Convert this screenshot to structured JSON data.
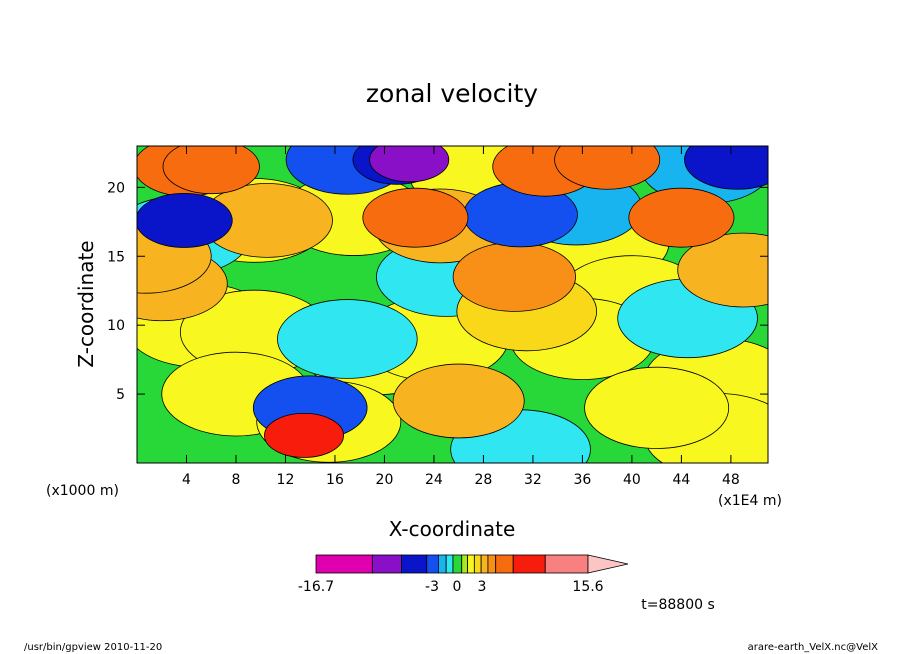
{
  "chart_data": {
    "type": "heatmap",
    "title": "zonal velocity",
    "xlabel": "X-coordinate",
    "ylabel": "Z-coordinate",
    "x_unit_note": "(x1E4 m)",
    "y_unit_note": "(x1000 m)",
    "xlim": [
      0,
      51
    ],
    "ylim": [
      0,
      23
    ],
    "x_ticks": [
      4,
      8,
      12,
      16,
      20,
      24,
      28,
      32,
      36,
      40,
      44,
      48
    ],
    "y_ticks": [
      5,
      10,
      15,
      20
    ],
    "x_tick_labels": [
      "4",
      "8",
      "12",
      "16",
      "20",
      "24",
      "28",
      "32",
      "36",
      "40",
      "44",
      "48"
    ],
    "y_tick_labels": [
      "5",
      "10",
      "15",
      "20"
    ],
    "time_label": "t=88800 s",
    "colorbar": {
      "min_label": "-16.7",
      "max_label": "15.6",
      "mid_labels": [
        "-3",
        "0",
        "3"
      ],
      "levels": [
        -16.7,
        -12,
        -8,
        -5,
        -3,
        -2,
        -1,
        0,
        1,
        2,
        3,
        4,
        6,
        9,
        12,
        15.6
      ],
      "colors": [
        "#e000b0",
        "#8a10c8",
        "#0a14c8",
        "#1450f0",
        "#18b4f0",
        "#30e6f0",
        "#28d838",
        "#a8e820",
        "#f8f820",
        "#f8d818",
        "#f8b420",
        "#f89018",
        "#f86c10",
        "#f81c0c",
        "#f88080"
      ],
      "extend_color": "#fcc4c4"
    },
    "field_features": [
      {
        "x": 4,
        "z": 21.5,
        "value": 6
      },
      {
        "x": 6,
        "z": 21.5,
        "value": 7
      },
      {
        "x": 3.8,
        "z": 17.6,
        "value": -7
      },
      {
        "x": 3.5,
        "z": 16.5,
        "value": -2
      },
      {
        "x": 10.5,
        "z": 17.6,
        "value": 3
      },
      {
        "x": 9.5,
        "z": 17.6,
        "value": 1
      },
      {
        "x": 2,
        "z": 13,
        "value": 3
      },
      {
        "x": 0.7,
        "z": 15,
        "value": 3
      },
      {
        "x": 5,
        "z": 10,
        "value": 1
      },
      {
        "x": 9.5,
        "z": 9.5,
        "value": 1
      },
      {
        "x": 13.5,
        "z": 2,
        "value": 9
      },
      {
        "x": 14,
        "z": 4,
        "value": -5
      },
      {
        "x": 15.5,
        "z": 3,
        "value": 1.5
      },
      {
        "x": 21,
        "z": 22,
        "value": -8
      },
      {
        "x": 22,
        "z": 22,
        "value": -12
      },
      {
        "x": 17,
        "z": 22,
        "value": -4
      },
      {
        "x": 17.5,
        "z": 18,
        "value": 1.5
      },
      {
        "x": 22.5,
        "z": 17.8,
        "value": 6
      },
      {
        "x": 24.5,
        "z": 17.2,
        "value": 3
      },
      {
        "x": 25,
        "z": 13.5,
        "value": -2
      },
      {
        "x": 17,
        "z": 9,
        "value": -2
      },
      {
        "x": 19.5,
        "z": 8,
        "value": 1
      },
      {
        "x": 26,
        "z": 4.5,
        "value": 3
      },
      {
        "x": 24,
        "z": 9,
        "value": 1
      },
      {
        "x": 31,
        "z": 1,
        "value": -2
      },
      {
        "x": 30.5,
        "z": 13.5,
        "value": 4
      },
      {
        "x": 31.5,
        "z": 11,
        "value": 2
      },
      {
        "x": 31,
        "z": 18,
        "value": -5
      },
      {
        "x": 35.5,
        "z": 18.5,
        "value": -3
      },
      {
        "x": 33,
        "z": 21.5,
        "value": 6
      },
      {
        "x": 38,
        "z": 22,
        "value": 6
      },
      {
        "x": 37,
        "z": 16,
        "value": 1
      },
      {
        "x": 36,
        "z": 9,
        "value": 1.5
      },
      {
        "x": 40,
        "z": 12,
        "value": 1
      },
      {
        "x": 44,
        "z": 17.8,
        "value": 6
      },
      {
        "x": 46,
        "z": 21.5,
        "value": -3
      },
      {
        "x": 48.5,
        "z": 22,
        "value": -6
      },
      {
        "x": 44.5,
        "z": 10.5,
        "value": -2
      },
      {
        "x": 49,
        "z": 14,
        "value": 3
      },
      {
        "x": 47,
        "z": 6,
        "value": 1
      },
      {
        "x": 42,
        "z": 4,
        "value": 1.5
      },
      {
        "x": 47,
        "z": 2,
        "value": 1
      },
      {
        "x": 28,
        "z": 21,
        "value": 1
      },
      {
        "x": 8,
        "z": 5,
        "value": 1
      }
    ],
    "background_value": -0.5
  },
  "footer": {
    "left": "/usr/bin/gpview  2010-11-20",
    "right": "arare-earth_VelX.nc@VelX"
  }
}
